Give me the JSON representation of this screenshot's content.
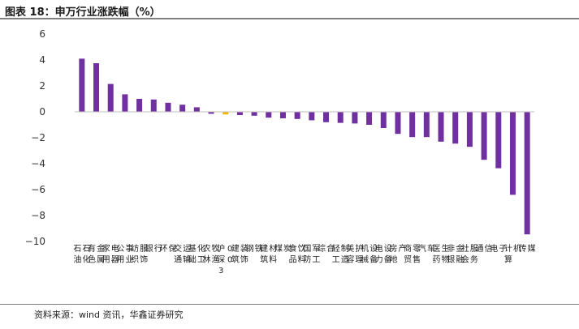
{
  "title": "图表 18：申万行业涨跌幅（%）",
  "source": "资料来源：wind 资讯，华鑫证券研究",
  "colors": {
    "main": "#7030a0",
    "highlight": "#f5b800",
    "axis": "#bfbfbf",
    "text": "#333333"
  },
  "chart_data": {
    "type": "bar",
    "title": "申万行业涨跌幅（%）",
    "xlabel": "",
    "ylabel": "",
    "ylim": [
      -10,
      6
    ],
    "yticks": [
      6,
      4,
      2,
      0,
      -2,
      -4,
      -6,
      -8,
      -10
    ],
    "highlight_category": "沪深300",
    "categories": [
      "石油石化",
      "有色金属",
      "家用电器",
      "公用事业",
      "纺织服饰",
      "银行",
      "环保",
      "交通运输",
      "基础化工",
      "农林牧渔",
      "沪深300",
      "建筑装饰",
      "钢铁",
      "建筑材料",
      "煤炭",
      "食品饮料",
      "国防军工",
      "综合",
      "轻工制造",
      "美容护理",
      "机械设备",
      "电力设备",
      "房地产",
      "商贸零售",
      "汽车",
      "医药生物",
      "非银金融",
      "社会服务",
      "通信",
      "电子",
      "计算机",
      "传媒"
    ],
    "values": [
      4.1,
      3.75,
      2.15,
      1.35,
      1.0,
      0.95,
      0.7,
      0.55,
      0.35,
      -0.15,
      -0.2,
      -0.25,
      -0.3,
      -0.45,
      -0.5,
      -0.55,
      -0.65,
      -0.8,
      -0.85,
      -0.9,
      -1.0,
      -1.25,
      -1.7,
      -1.95,
      -1.95,
      -2.3,
      -2.45,
      -2.7,
      -3.7,
      -4.35,
      -6.4,
      -9.45
    ]
  }
}
